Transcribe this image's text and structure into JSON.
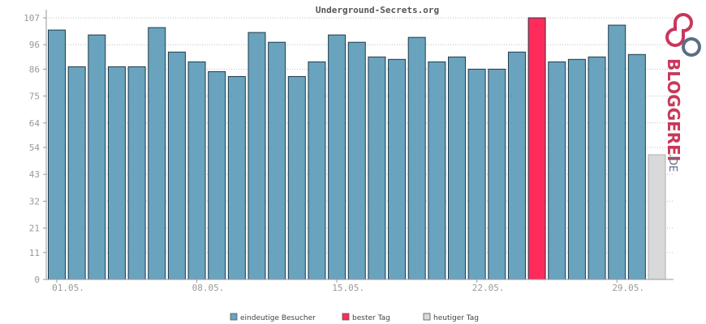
{
  "chart_data": {
    "type": "bar",
    "title": "Underground-Secrets.org",
    "ylim": [
      0,
      107
    ],
    "yticks": [
      0,
      11,
      21,
      32,
      43,
      54,
      64,
      75,
      86,
      96,
      107
    ],
    "grid": true,
    "legend_position": "bottom",
    "x_ticks": [
      {
        "label": "01.05.",
        "index": 0
      },
      {
        "label": "08.05.",
        "index": 7
      },
      {
        "label": "15.05.",
        "index": 14
      },
      {
        "label": "22.05.",
        "index": 21
      },
      {
        "label": "29.05.",
        "index": 28
      }
    ],
    "values": [
      102,
      87,
      100,
      87,
      87,
      103,
      93,
      89,
      85,
      83,
      101,
      97,
      83,
      89,
      100,
      97,
      91,
      90,
      99,
      89,
      91,
      86,
      86,
      93,
      107,
      89,
      90,
      91,
      104,
      92,
      51
    ],
    "best_index": 24,
    "today_index": 30,
    "legend": [
      {
        "label": "eindeutige Besucher",
        "color": "#6aa3be"
      },
      {
        "label": "bester Tag",
        "color": "#ff2b5b"
      },
      {
        "label": "heutiger Tag",
        "color": "#d9d9d9"
      }
    ],
    "colors": {
      "normal": "#6aa3be",
      "best": "#ff2b5b",
      "today": "#d9d9d9",
      "bar_stroke": "#1f3b4a",
      "today_stroke": "#b0b0b0"
    }
  },
  "logo": {
    "text": "BLOGGEREI",
    "suffix": ".DE"
  }
}
